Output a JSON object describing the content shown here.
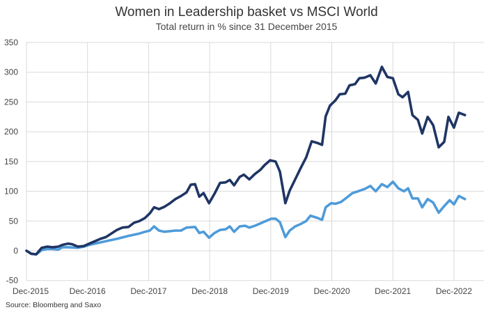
{
  "chart_data": {
    "type": "line",
    "title": "Women in Leadership basket vs MSCI World",
    "subtitle": "Total return in % since 31 December 2015",
    "source": "Source: Bloomberg and Saxo",
    "xlabel": "",
    "ylabel": "",
    "ylim": [
      -50,
      350
    ],
    "yticks": [
      -50,
      0,
      50,
      100,
      150,
      200,
      250,
      300,
      350
    ],
    "xlim": [
      0,
      7.3
    ],
    "xtick_labels": [
      "Dec-2015",
      "Dec-2016",
      "Dec-2017",
      "Dec-2018",
      "Dec-2019",
      "Dec-2020",
      "Dec-2021",
      "Dec-2022"
    ],
    "x_unit": "years since Dec-2015",
    "grid": true,
    "series": [
      {
        "name": "Women in Leadership basket",
        "color": "#1f3564",
        "points": [
          [
            0,
            0
          ],
          [
            0.08,
            -5
          ],
          [
            0.16,
            -6
          ],
          [
            0.25,
            5
          ],
          [
            0.34,
            7
          ],
          [
            0.43,
            6
          ],
          [
            0.52,
            7
          ],
          [
            0.59,
            10
          ],
          [
            0.68,
            12
          ],
          [
            0.75,
            11
          ],
          [
            0.84,
            7
          ],
          [
            0.94,
            8
          ],
          [
            1.03,
            12
          ],
          [
            1.12,
            16
          ],
          [
            1.21,
            20
          ],
          [
            1.3,
            23
          ],
          [
            1.39,
            29
          ],
          [
            1.48,
            35
          ],
          [
            1.57,
            39
          ],
          [
            1.67,
            40
          ],
          [
            1.76,
            47
          ],
          [
            1.85,
            50
          ],
          [
            1.94,
            55
          ],
          [
            2.02,
            63
          ],
          [
            2.09,
            73
          ],
          [
            2.17,
            70
          ],
          [
            2.26,
            74
          ],
          [
            2.35,
            80
          ],
          [
            2.44,
            87
          ],
          [
            2.53,
            92
          ],
          [
            2.62,
            98
          ],
          [
            2.69,
            111
          ],
          [
            2.76,
            112
          ],
          [
            2.83,
            91
          ],
          [
            2.9,
            97
          ],
          [
            2.99,
            80
          ],
          [
            3.08,
            96
          ],
          [
            3.17,
            114
          ],
          [
            3.26,
            115
          ],
          [
            3.33,
            119
          ],
          [
            3.4,
            110
          ],
          [
            3.49,
            124
          ],
          [
            3.56,
            128
          ],
          [
            3.65,
            120
          ],
          [
            3.74,
            129
          ],
          [
            3.83,
            136
          ],
          [
            3.9,
            144
          ],
          [
            3.99,
            152
          ],
          [
            4.08,
            150
          ],
          [
            4.15,
            133
          ],
          [
            4.24,
            80
          ],
          [
            4.31,
            101
          ],
          [
            4.4,
            120
          ],
          [
            4.49,
            139
          ],
          [
            4.58,
            157
          ],
          [
            4.67,
            184
          ],
          [
            4.77,
            181
          ],
          [
            4.84,
            178
          ],
          [
            4.9,
            226
          ],
          [
            4.97,
            244
          ],
          [
            5.06,
            253
          ],
          [
            5.13,
            263
          ],
          [
            5.22,
            264
          ],
          [
            5.29,
            278
          ],
          [
            5.38,
            280
          ],
          [
            5.45,
            290
          ],
          [
            5.54,
            291
          ],
          [
            5.63,
            295
          ],
          [
            5.72,
            281
          ],
          [
            5.82,
            309
          ],
          [
            5.91,
            292
          ],
          [
            6.0,
            290
          ],
          [
            6.09,
            263
          ],
          [
            6.16,
            258
          ],
          [
            6.25,
            267
          ],
          [
            6.32,
            228
          ],
          [
            6.41,
            220
          ],
          [
            6.48,
            197
          ],
          [
            6.57,
            225
          ],
          [
            6.66,
            211
          ],
          [
            6.75,
            174
          ],
          [
            6.84,
            183
          ],
          [
            6.91,
            225
          ],
          [
            7.0,
            207
          ],
          [
            7.08,
            232
          ],
          [
            7.18,
            228
          ]
        ]
      },
      {
        "name": "MSCI World",
        "color": "#4e9bd9",
        "points": [
          [
            0,
            0
          ],
          [
            0.08,
            -5
          ],
          [
            0.16,
            -6
          ],
          [
            0.25,
            1
          ],
          [
            0.34,
            3
          ],
          [
            0.43,
            3
          ],
          [
            0.52,
            2
          ],
          [
            0.59,
            6
          ],
          [
            0.68,
            6
          ],
          [
            0.84,
            5
          ],
          [
            0.94,
            7
          ],
          [
            1.03,
            10
          ],
          [
            1.12,
            12
          ],
          [
            1.3,
            16
          ],
          [
            1.48,
            20
          ],
          [
            1.67,
            25
          ],
          [
            1.85,
            29
          ],
          [
            1.94,
            32
          ],
          [
            2.02,
            34
          ],
          [
            2.09,
            41
          ],
          [
            2.17,
            34
          ],
          [
            2.26,
            32
          ],
          [
            2.44,
            34
          ],
          [
            2.53,
            34
          ],
          [
            2.62,
            39
          ],
          [
            2.76,
            40
          ],
          [
            2.83,
            30
          ],
          [
            2.9,
            32
          ],
          [
            2.99,
            22
          ],
          [
            3.08,
            30
          ],
          [
            3.17,
            35
          ],
          [
            3.26,
            36
          ],
          [
            3.33,
            41
          ],
          [
            3.4,
            32
          ],
          [
            3.49,
            41
          ],
          [
            3.58,
            42
          ],
          [
            3.65,
            39
          ],
          [
            3.74,
            42
          ],
          [
            3.83,
            46
          ],
          [
            3.92,
            50
          ],
          [
            4.01,
            54
          ],
          [
            4.08,
            54
          ],
          [
            4.15,
            48
          ],
          [
            4.24,
            23
          ],
          [
            4.31,
            34
          ],
          [
            4.4,
            41
          ],
          [
            4.49,
            45
          ],
          [
            4.58,
            50
          ],
          [
            4.65,
            59
          ],
          [
            4.77,
            55
          ],
          [
            4.84,
            52
          ],
          [
            4.9,
            73
          ],
          [
            4.99,
            80
          ],
          [
            5.06,
            79
          ],
          [
            5.15,
            82
          ],
          [
            5.24,
            89
          ],
          [
            5.34,
            97
          ],
          [
            5.43,
            100
          ],
          [
            5.54,
            104
          ],
          [
            5.63,
            109
          ],
          [
            5.72,
            100
          ],
          [
            5.82,
            112
          ],
          [
            5.91,
            107
          ],
          [
            6.0,
            116
          ],
          [
            6.09,
            105
          ],
          [
            6.18,
            100
          ],
          [
            6.25,
            105
          ],
          [
            6.32,
            88
          ],
          [
            6.41,
            88
          ],
          [
            6.48,
            73
          ],
          [
            6.57,
            87
          ],
          [
            6.66,
            81
          ],
          [
            6.75,
            64
          ],
          [
            6.84,
            75
          ],
          [
            6.93,
            85
          ],
          [
            7.0,
            78
          ],
          [
            7.08,
            92
          ],
          [
            7.18,
            87
          ]
        ]
      }
    ]
  }
}
